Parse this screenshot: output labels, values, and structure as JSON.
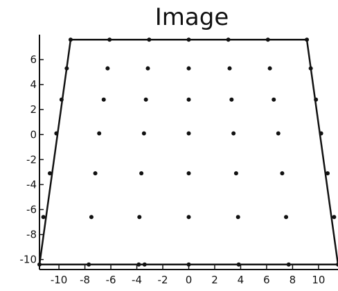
{
  "chart_data": {
    "type": "scatter",
    "title": "Image",
    "xlabel": "",
    "ylabel": "",
    "xlim": [
      -11.5,
      11.5
    ],
    "ylim": [
      -10.8,
      8
    ],
    "x_ticks": [
      -10,
      -8,
      -6,
      -4,
      -2,
      0,
      2,
      4,
      6,
      8,
      10
    ],
    "y_ticks": [
      -10,
      -8,
      -6,
      -4,
      -2,
      0,
      2,
      4,
      6
    ],
    "grid": false,
    "outline": [
      [
        -9.1,
        7.6
      ],
      [
        9.1,
        7.6
      ],
      [
        11.5,
        -10.4
      ],
      [
        -11.5,
        -10.4
      ],
      [
        -9.1,
        7.6
      ]
    ],
    "rows": [
      {
        "y": 7.6,
        "x": [
          -9.1,
          -6.1,
          -3.05,
          0,
          3.05,
          6.1,
          9.1
        ]
      },
      {
        "y": 5.3,
        "x": [
          -9.4,
          -6.25,
          -3.15,
          0,
          3.15,
          6.25,
          9.4
        ]
      },
      {
        "y": 2.8,
        "x": [
          -9.8,
          -6.55,
          -3.3,
          0,
          3.3,
          6.55,
          9.8
        ]
      },
      {
        "y": 0.1,
        "x": [
          -10.2,
          -6.9,
          -3.45,
          0,
          3.45,
          6.9,
          10.2
        ]
      },
      {
        "y": -3.1,
        "x": [
          -10.7,
          -7.2,
          -3.65,
          0,
          3.65,
          7.2,
          10.7
        ]
      },
      {
        "y": -6.6,
        "x": [
          -11.2,
          -7.5,
          -3.8,
          0,
          3.8,
          7.5,
          11.2
        ]
      },
      {
        "y": -10.4,
        "x": [
          -11.5,
          -7.7,
          -3.85,
          0,
          3.85,
          7.7,
          11.5
        ]
      }
    ],
    "extra_points": [
      [
        -3.4,
        -10.4
      ]
    ]
  }
}
